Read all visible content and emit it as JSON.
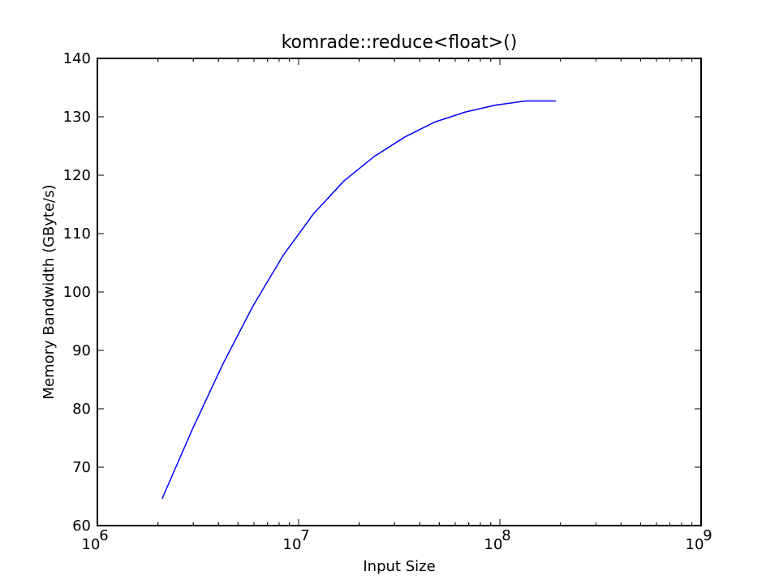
{
  "chart_data": {
    "type": "line",
    "title": "komrade::reduce<float>()",
    "xlabel": "Input Size",
    "ylabel": "Memory Bandwidth (GByte/s)",
    "xscale": "log",
    "xlim": [
      1000000,
      1000000000
    ],
    "ylim": [
      60,
      140
    ],
    "grid": false,
    "x_ticks": [
      {
        "value": 1000000,
        "base": "10",
        "exp": "6"
      },
      {
        "value": 10000000,
        "base": "10",
        "exp": "7"
      },
      {
        "value": 100000000,
        "base": "10",
        "exp": "8"
      },
      {
        "value": 1000000000,
        "base": "10",
        "exp": "9"
      }
    ],
    "y_ticks": [
      60,
      70,
      80,
      90,
      100,
      110,
      120,
      130,
      140
    ],
    "series": [
      {
        "color": "#0000ff",
        "x": [
          2097152,
          2965820,
          4194304,
          5931642,
          8388608,
          11863283,
          16777216,
          23726566,
          33554432,
          47453132,
          67108864,
          94906265,
          134217728,
          189812531
        ],
        "y": [
          64.6,
          76.5,
          87.6,
          97.6,
          106.3,
          113.4,
          119.0,
          123.2,
          126.5,
          129.1,
          130.8,
          132.0,
          132.7,
          132.7
        ]
      }
    ]
  }
}
